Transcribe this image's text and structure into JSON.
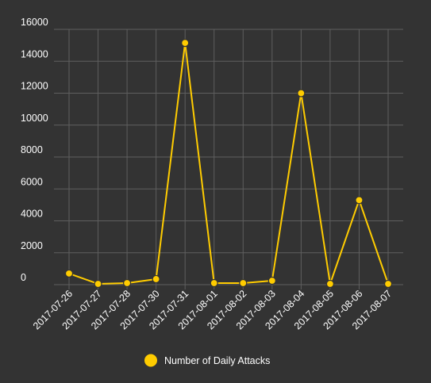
{
  "colors": {
    "background": "#333333",
    "grid": "#5f5f5f",
    "series": "#ffcc00",
    "point_border": "#333333",
    "text": "#ffffff"
  },
  "chart_data": {
    "type": "line",
    "grid": true,
    "legend_position": "bottom",
    "ylim": [
      0,
      16000
    ],
    "y_ticks": [
      0,
      2000,
      4000,
      6000,
      8000,
      10000,
      12000,
      14000,
      16000
    ],
    "x": [
      "2017-07-26",
      "2017-07-27",
      "2017-07-28",
      "2017-07-30",
      "2017-07-31",
      "2017-08-01",
      "2017-08-02",
      "2017-08-03",
      "2017-08-04",
      "2017-08-05",
      "2017-08-06",
      "2017-08-07"
    ],
    "series": [
      {
        "name": "Number of Daily Attacks",
        "values": [
          700,
          50,
          100,
          350,
          15150,
          100,
          100,
          250,
          12000,
          50,
          5300,
          50
        ]
      }
    ]
  }
}
